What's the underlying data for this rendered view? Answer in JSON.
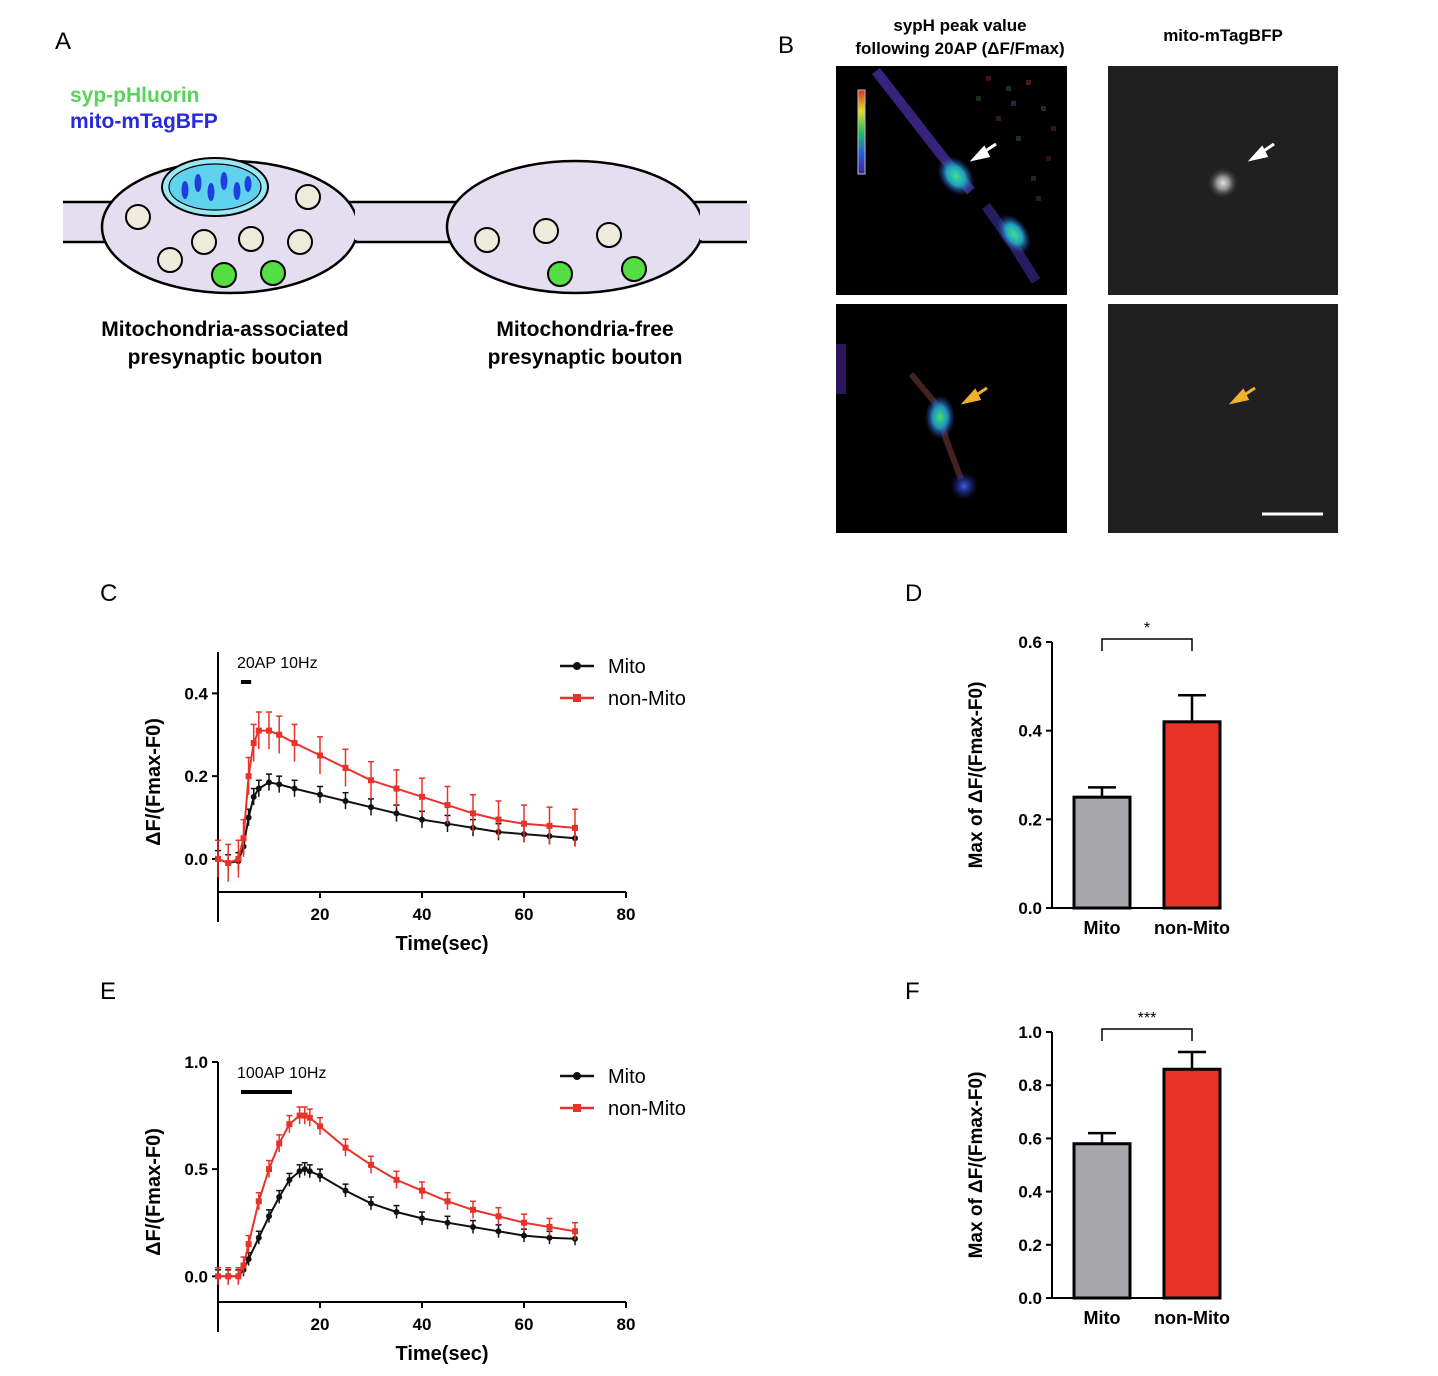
{
  "panels": {
    "A": {
      "label": "A",
      "legend": [
        {
          "text": "syp-pHluorin",
          "color": "#5cd15c"
        },
        {
          "text": "mito-mTagBFP",
          "color": "#2828e0"
        }
      ],
      "bouton_labels": [
        [
          "Mitochondria-associated",
          "presynaptic bouton"
        ],
        [
          "Mitochondria-free",
          "presynaptic bouton"
        ]
      ]
    },
    "B": {
      "label": "B",
      "col1_title": [
        "sypH  peak value",
        "following   20AP (ΔF/Fmax)"
      ],
      "col2_title": "mito-mTagBFP"
    },
    "C": {
      "label": "C"
    },
    "D": {
      "label": "D"
    },
    "E": {
      "label": "E"
    },
    "F": {
      "label": "F"
    }
  },
  "colors": {
    "mito": "#111111",
    "non_mito": "#e8332a",
    "bar_mito": "#a6a6ab",
    "bar_non_mito": "#e8332a",
    "white_arrow": "#ffffff",
    "yellow_arrow": "#f0b030"
  },
  "chart_data": [
    {
      "id": "C",
      "type": "line",
      "stimulus_label": "20AP  10Hz",
      "stimulus_range": [
        4.5,
        6.5
      ],
      "xlabel": "Time(sec)",
      "ylabel": "ΔF/(Fmax-F0)",
      "xlim": [
        0,
        80
      ],
      "ylim": [
        -0.08,
        0.5
      ],
      "xticks": [
        20,
        40,
        60,
        80
      ],
      "yticks": [
        0.0,
        0.2,
        0.4
      ],
      "ytick_labels": [
        "0.0",
        "0.2",
        "0.4"
      ],
      "legend_position": "top-right",
      "series": [
        {
          "name": "Mito",
          "color": "#111111",
          "marker": "circle",
          "x": [
            0,
            2,
            4,
            5,
            6,
            7,
            8,
            10,
            12,
            15,
            20,
            25,
            30,
            35,
            40,
            45,
            50,
            55,
            60,
            65,
            70
          ],
          "y": [
            0.0,
            -0.01,
            -0.005,
            0.03,
            0.1,
            0.15,
            0.17,
            0.185,
            0.18,
            0.17,
            0.155,
            0.14,
            0.125,
            0.11,
            0.095,
            0.085,
            0.075,
            0.065,
            0.06,
            0.055,
            0.05
          ],
          "err": 0.02
        },
        {
          "name": "non-Mito",
          "color": "#e8332a",
          "marker": "square",
          "x": [
            0,
            2,
            4,
            5,
            6,
            7,
            8,
            10,
            12,
            15,
            20,
            25,
            30,
            35,
            40,
            45,
            50,
            55,
            60,
            65,
            70
          ],
          "y": [
            0.0,
            -0.01,
            0.0,
            0.05,
            0.2,
            0.28,
            0.31,
            0.31,
            0.3,
            0.28,
            0.25,
            0.22,
            0.19,
            0.17,
            0.15,
            0.13,
            0.11,
            0.095,
            0.085,
            0.08,
            0.075
          ],
          "err": 0.045
        }
      ]
    },
    {
      "id": "D",
      "type": "bar",
      "ylabel": "Max of ΔF/(Fmax-F0)",
      "categories": [
        "Mito",
        "non-Mito"
      ],
      "values": [
        0.25,
        0.42
      ],
      "errors": [
        0.022,
        0.06
      ],
      "ylim": [
        0,
        0.6
      ],
      "yticks": [
        0.0,
        0.2,
        0.4,
        0.6
      ],
      "ytick_labels": [
        "0.0",
        "0.2",
        "0.4",
        "0.6"
      ],
      "significance": "*"
    },
    {
      "id": "E",
      "type": "line",
      "stimulus_label": "100AP  10Hz",
      "stimulus_range": [
        4.5,
        14.5
      ],
      "xlabel": "Time(sec)",
      "ylabel": "ΔF/(Fmax-F0)",
      "xlim": [
        0,
        80
      ],
      "ylim": [
        -0.12,
        1.0
      ],
      "xticks": [
        20,
        40,
        60,
        80
      ],
      "yticks": [
        0.0,
        0.5,
        1.0
      ],
      "ytick_labels": [
        "0.0",
        "0.5",
        "1.0"
      ],
      "legend_position": "top-right",
      "series": [
        {
          "name": "Mito",
          "color": "#111111",
          "marker": "circle",
          "x": [
            0,
            2,
            4,
            5,
            6,
            8,
            10,
            12,
            14,
            16,
            17,
            18,
            20,
            25,
            30,
            35,
            40,
            45,
            50,
            55,
            60,
            65,
            70
          ],
          "y": [
            0.0,
            0.0,
            0.0,
            0.03,
            0.08,
            0.18,
            0.28,
            0.37,
            0.45,
            0.49,
            0.5,
            0.49,
            0.47,
            0.4,
            0.34,
            0.3,
            0.27,
            0.25,
            0.23,
            0.21,
            0.19,
            0.18,
            0.175
          ],
          "err": 0.03
        },
        {
          "name": "non-Mito",
          "color": "#e8332a",
          "marker": "square",
          "x": [
            0,
            2,
            4,
            5,
            6,
            8,
            10,
            12,
            14,
            16,
            17,
            18,
            20,
            25,
            30,
            35,
            40,
            45,
            50,
            55,
            60,
            65,
            70
          ],
          "y": [
            0.0,
            0.0,
            0.0,
            0.05,
            0.15,
            0.35,
            0.5,
            0.62,
            0.71,
            0.75,
            0.75,
            0.74,
            0.7,
            0.6,
            0.52,
            0.45,
            0.4,
            0.35,
            0.31,
            0.28,
            0.25,
            0.23,
            0.21
          ],
          "err": 0.04
        }
      ]
    },
    {
      "id": "F",
      "type": "bar",
      "ylabel": "Max of ΔF/(Fmax-F0)",
      "categories": [
        "Mito",
        "non-Mito"
      ],
      "values": [
        0.58,
        0.86
      ],
      "errors": [
        0.04,
        0.065
      ],
      "ylim": [
        0,
        1.0
      ],
      "yticks": [
        0.0,
        0.2,
        0.4,
        0.6,
        0.8,
        1.0
      ],
      "ytick_labels": [
        "0.0",
        "0.2",
        "0.4",
        "0.6",
        "0.8",
        "1.0"
      ],
      "significance": "***"
    }
  ]
}
